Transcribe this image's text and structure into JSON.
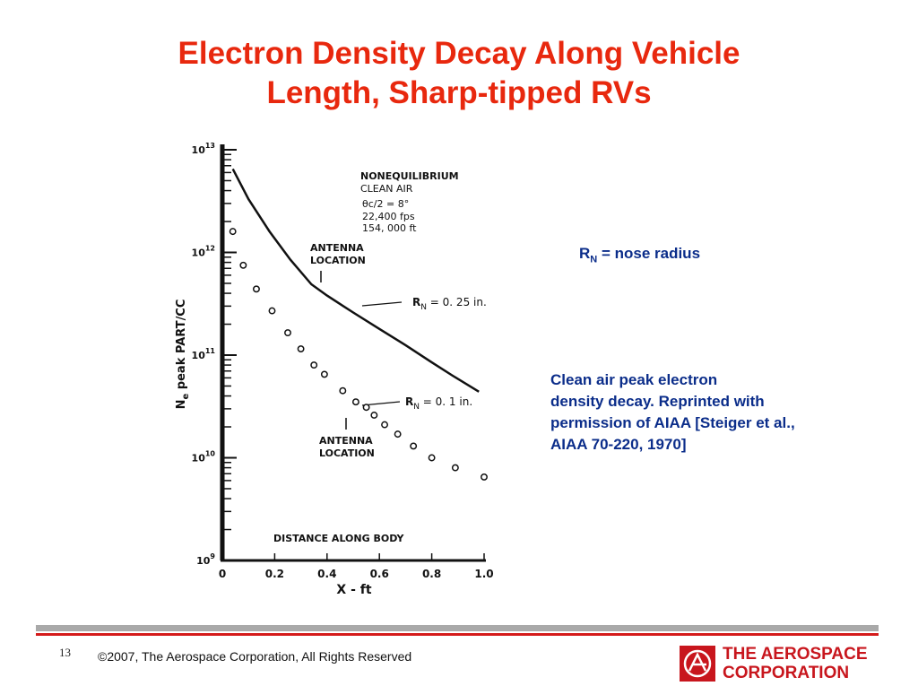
{
  "slide": {
    "title_line1": "Electron Density Decay Along Vehicle",
    "title_line2": "Length, Sharp-tipped RVs",
    "rn_note_r": "R",
    "rn_note_sub": "N",
    "rn_note_rest": " = nose radius",
    "caption_lines": [
      "Clean air peak electron",
      "density decay.  Reprinted with",
      "permission of AIAA [Steiger et al.,",
      "AIAA 70-220, 1970]"
    ]
  },
  "footer": {
    "page_number": "13",
    "copyright": "©2007, The Aerospace Corporation, All Rights Reserved",
    "logo_line1": "THE AEROSPACE",
    "logo_line2": "CORPORATION"
  },
  "colors": {
    "title": "#e8280e",
    "note": "#0b2d8a",
    "logo": "#c8161d"
  },
  "chart_data": {
    "type": "scatter",
    "xlabel": "X  -  ft",
    "ylabel_main": "N",
    "ylabel_sub": "e",
    "ylabel_rest": " peak  PART/CC",
    "xlim": [
      0,
      1.0
    ],
    "ylim": [
      1000000000.0,
      10000000000000.0
    ],
    "y_scale": "log",
    "x_ticks": [
      "0",
      "0.2",
      "0.4",
      "0.6",
      "0.8",
      "1.0"
    ],
    "x_tick_values": [
      0,
      0.2,
      0.4,
      0.6,
      0.8,
      1.0
    ],
    "y_ticks": [
      {
        "value": 10000000000000.0,
        "base": "10",
        "exp": "13"
      },
      {
        "value": 1000000000000.0,
        "base": "10",
        "exp": "12"
      },
      {
        "value": 100000000000.0,
        "base": "10",
        "exp": "11"
      },
      {
        "value": 10000000000.0,
        "base": "10",
        "exp": "10"
      },
      {
        "value": 1000000000.0,
        "base": "10",
        "exp": "9"
      }
    ],
    "conditions": [
      "NONEQUILIBRIUM",
      "CLEAN AIR",
      "θc/2 = 8°",
      "22,400 fps",
      "154, 000 ft"
    ],
    "distance_label": "DISTANCE  ALONG BODY",
    "annotations": {
      "antenna_upper": [
        "ANTENNA",
        "LOCATION"
      ],
      "antenna_lower": [
        "ANTENNA",
        "LOCATION"
      ],
      "rn_upper_r": "R",
      "rn_upper_sub": "N",
      "rn_upper_rest": "  =  0. 25  in.",
      "rn_lower_r": "R",
      "rn_lower_sub": "N",
      "rn_lower_rest": "  =  0. 1  in."
    },
    "antenna_x": [
      0.39,
      0.52
    ],
    "series": [
      {
        "label": "R_N = 0.25 in.",
        "style": "line",
        "x": [
          0.04,
          0.1,
          0.18,
          0.26,
          0.34,
          0.4,
          0.5,
          0.6,
          0.7,
          0.8,
          0.88,
          0.98
        ],
        "y": [
          6500000000000.0,
          3300000000000.0,
          1600000000000.0,
          850000000000.0,
          490000000000.0,
          380000000000.0,
          260000000000.0,
          180000000000.0,
          125000000000.0,
          85000000000.0,
          63000000000.0,
          44000000000.0
        ]
      },
      {
        "label": "R_N = 0.1 in.",
        "style": "circles",
        "x": [
          0.04,
          0.08,
          0.13,
          0.19,
          0.25,
          0.3,
          0.35,
          0.39,
          0.46,
          0.51,
          0.55,
          0.58,
          0.62,
          0.67,
          0.73,
          0.8,
          0.89,
          1.0
        ],
        "y": [
          1600000000000.0,
          750000000000.0,
          440000000000.0,
          270000000000.0,
          165000000000.0,
          115000000000.0,
          80000000000.0,
          65000000000.0,
          45000000000.0,
          35000000000.0,
          31000000000.0,
          26000000000.0,
          21000000000.0,
          17000000000.0,
          13000000000.0,
          10000000000.0,
          8000000000.0,
          6500000000.0
        ]
      }
    ]
  }
}
